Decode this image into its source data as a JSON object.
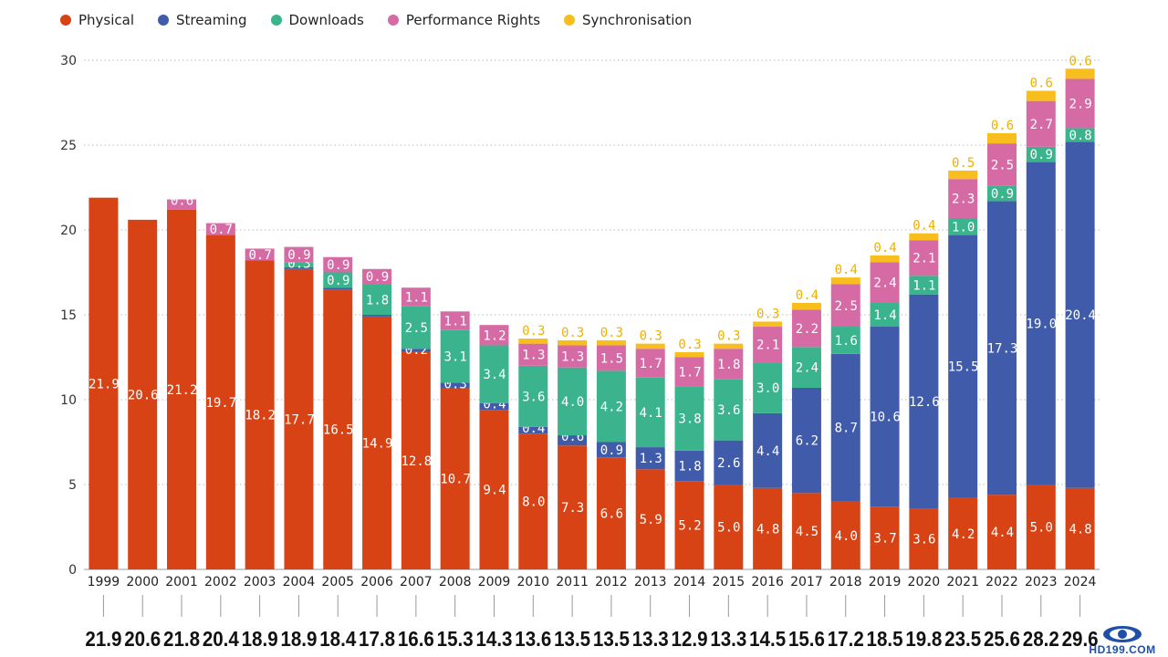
{
  "chart_data": {
    "type": "bar",
    "stacked": true,
    "title": "",
    "xlabel": "",
    "ylabel": "",
    "ylim": [
      0,
      30
    ],
    "yticks": [
      0,
      5,
      10,
      15,
      20,
      25,
      30
    ],
    "grid": true,
    "legend_position": "top-left",
    "categories": [
      "1999",
      "2000",
      "2001",
      "2002",
      "2003",
      "2004",
      "2005",
      "2006",
      "2007",
      "2008",
      "2009",
      "2010",
      "2011",
      "2012",
      "2013",
      "2014",
      "2015",
      "2016",
      "2017",
      "2018",
      "2019",
      "2020",
      "2021",
      "2022",
      "2023",
      "2024"
    ],
    "series": [
      {
        "name": "Physical",
        "color": "#d84315",
        "values": [
          21.9,
          20.6,
          21.2,
          19.7,
          18.2,
          17.7,
          16.5,
          14.9,
          12.8,
          10.7,
          9.4,
          8.0,
          7.3,
          6.6,
          5.9,
          5.2,
          5.0,
          4.8,
          4.5,
          4.0,
          3.7,
          3.6,
          4.2,
          4.4,
          5.0,
          4.8
        ]
      },
      {
        "name": "Streaming",
        "color": "#3f5ba9",
        "values": [
          null,
          null,
          null,
          null,
          null,
          0.1,
          0.1,
          0.1,
          0.2,
          0.3,
          0.4,
          0.4,
          0.6,
          0.9,
          1.3,
          1.8,
          2.6,
          4.4,
          6.2,
          8.7,
          10.6,
          12.6,
          15.5,
          17.3,
          19.0,
          20.4
        ]
      },
      {
        "name": "Downloads",
        "color": "#3bb38d",
        "values": [
          null,
          null,
          null,
          null,
          null,
          0.3,
          0.9,
          1.8,
          2.5,
          3.1,
          3.4,
          3.6,
          4.0,
          4.2,
          4.1,
          3.8,
          3.6,
          3.0,
          2.4,
          1.6,
          1.4,
          1.1,
          1.0,
          0.9,
          0.9,
          0.8
        ]
      },
      {
        "name": "Performance Rights",
        "color": "#d66aa5",
        "values": [
          null,
          null,
          0.6,
          0.7,
          0.7,
          0.9,
          0.9,
          0.9,
          1.1,
          1.1,
          1.2,
          1.3,
          1.3,
          1.5,
          1.7,
          1.7,
          1.8,
          2.1,
          2.2,
          2.5,
          2.4,
          2.1,
          2.3,
          2.5,
          2.7,
          2.9
        ]
      },
      {
        "name": "Synchronisation",
        "color": "#f7be1e",
        "values": [
          null,
          null,
          null,
          null,
          null,
          null,
          null,
          null,
          null,
          null,
          null,
          0.3,
          0.3,
          0.3,
          0.3,
          0.3,
          0.3,
          0.3,
          0.4,
          0.4,
          0.4,
          0.4,
          0.5,
          0.6,
          0.6,
          0.6
        ]
      }
    ],
    "totals": [
      "21.9",
      "20.6",
      "21.8",
      "20.4",
      "18.9",
      "18.9",
      "18.4",
      "17.8",
      "16.6",
      "15.3",
      "14.3",
      "13.6",
      "13.5",
      "13.5",
      "13.3",
      "12.9",
      "13.3",
      "14.5",
      "15.6",
      "17.2",
      "18.5",
      "19.8",
      "23.5",
      "25.6",
      "28.2",
      "29.6"
    ]
  },
  "watermark": {
    "text": "HD199.COM",
    "color": "#1f4fa8"
  }
}
